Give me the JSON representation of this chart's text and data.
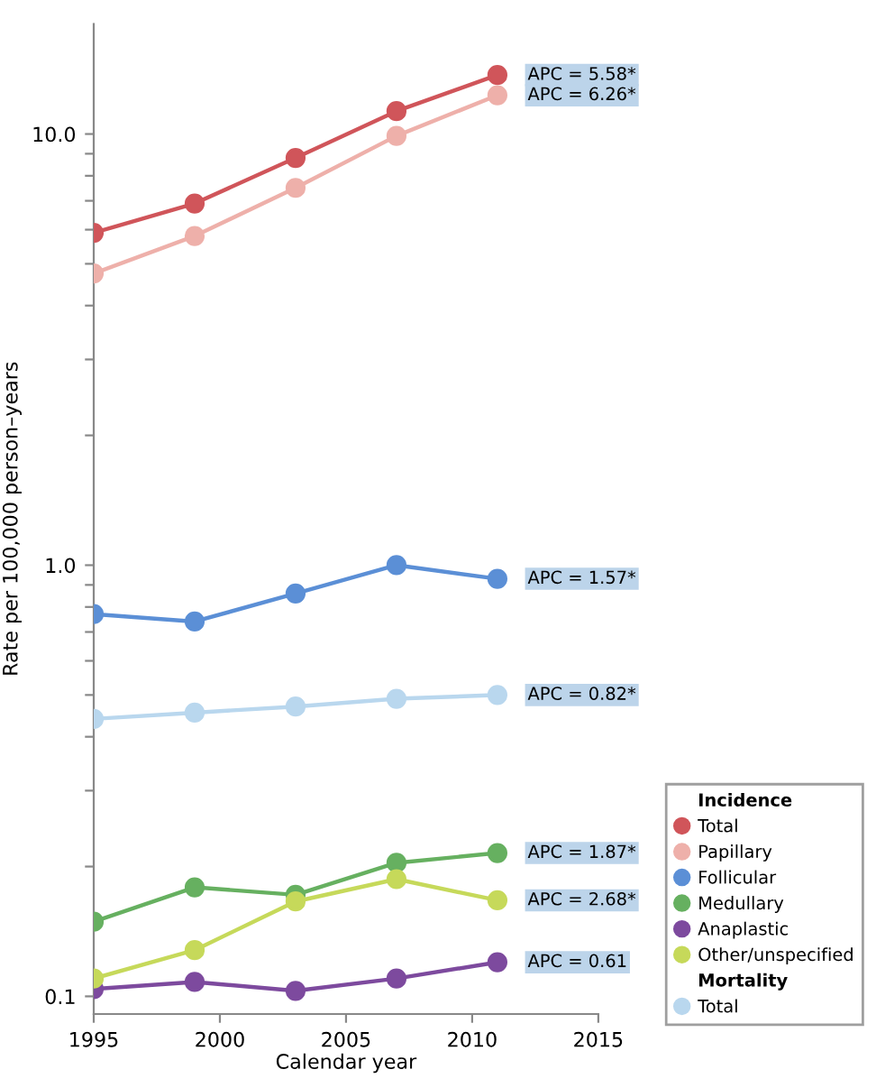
{
  "chart_data": {
    "type": "line",
    "xlabel": "Calendar year",
    "ylabel": "Rate per 100,000 person–years",
    "x": [
      1995,
      1999,
      2003,
      2007,
      2011
    ],
    "log": "y",
    "xlim": [
      1995,
      2015
    ],
    "xticks": [
      1995,
      2000,
      2005,
      2010,
      2015
    ],
    "ylim": [
      0.091,
      18
    ],
    "yticks": [
      {
        "value": 0.1,
        "label": "0.1"
      },
      {
        "value": 0.2,
        "label": null
      },
      {
        "value": 0.3,
        "label": null
      },
      {
        "value": 0.4,
        "label": null
      },
      {
        "value": 0.5,
        "label": null
      },
      {
        "value": 0.6,
        "label": null
      },
      {
        "value": 0.7,
        "label": null
      },
      {
        "value": 0.8,
        "label": null
      },
      {
        "value": 0.9,
        "label": null
      },
      {
        "value": 1,
        "label": "1.0"
      },
      {
        "value": 2,
        "label": null
      },
      {
        "value": 3,
        "label": null
      },
      {
        "value": 4,
        "label": null
      },
      {
        "value": 5,
        "label": null
      },
      {
        "value": 6,
        "label": null
      },
      {
        "value": 7,
        "label": null
      },
      {
        "value": 8,
        "label": null
      },
      {
        "value": 9,
        "label": null
      },
      {
        "value": 10,
        "label": "10.0"
      }
    ],
    "grid": false,
    "marker": "circle",
    "line_style": "solid",
    "legend": "bottom right",
    "legend_title": [
      "Incidence",
      "Mortality"
    ],
    "series": [
      {
        "name": "Total",
        "color": "#d0555a",
        "values": [
          5.9,
          6.9,
          8.8,
          11.3,
          13.7
        ]
      },
      {
        "name": "Papillary",
        "color": "#eeb0aa",
        "values": [
          4.75,
          5.8,
          7.5,
          9.9,
          12.3
        ]
      },
      {
        "name": "Follicular",
        "color": "#5b8fd6",
        "values": [
          0.77,
          0.74,
          0.86,
          1.0,
          0.93
        ]
      },
      {
        "name": "Medullary",
        "color": "#66b060",
        "values": [
          0.149,
          0.179,
          0.172,
          0.204,
          0.215
        ]
      },
      {
        "name": "Anaplastic",
        "color": "#7d4a9e",
        "values": [
          0.104,
          0.108,
          0.103,
          0.11,
          0.12
        ]
      },
      {
        "name": "Other/unspecified",
        "color": "#c6d95a",
        "values": [
          0.11,
          0.128,
          0.166,
          0.187,
          0.167
        ]
      },
      {
        "name": "Total",
        "color": "#b9d7ee",
        "values": [
          0.44,
          0.455,
          0.47,
          0.49,
          0.5
        ]
      }
    ],
    "annotations": [
      "APC = 5.58*",
      "APC = 6.26*",
      "APC = 1.57*",
      "APC = 0.82*",
      "APC = 1.87*",
      "APC = 2.68*",
      "APC = 0.61"
    ]
  }
}
